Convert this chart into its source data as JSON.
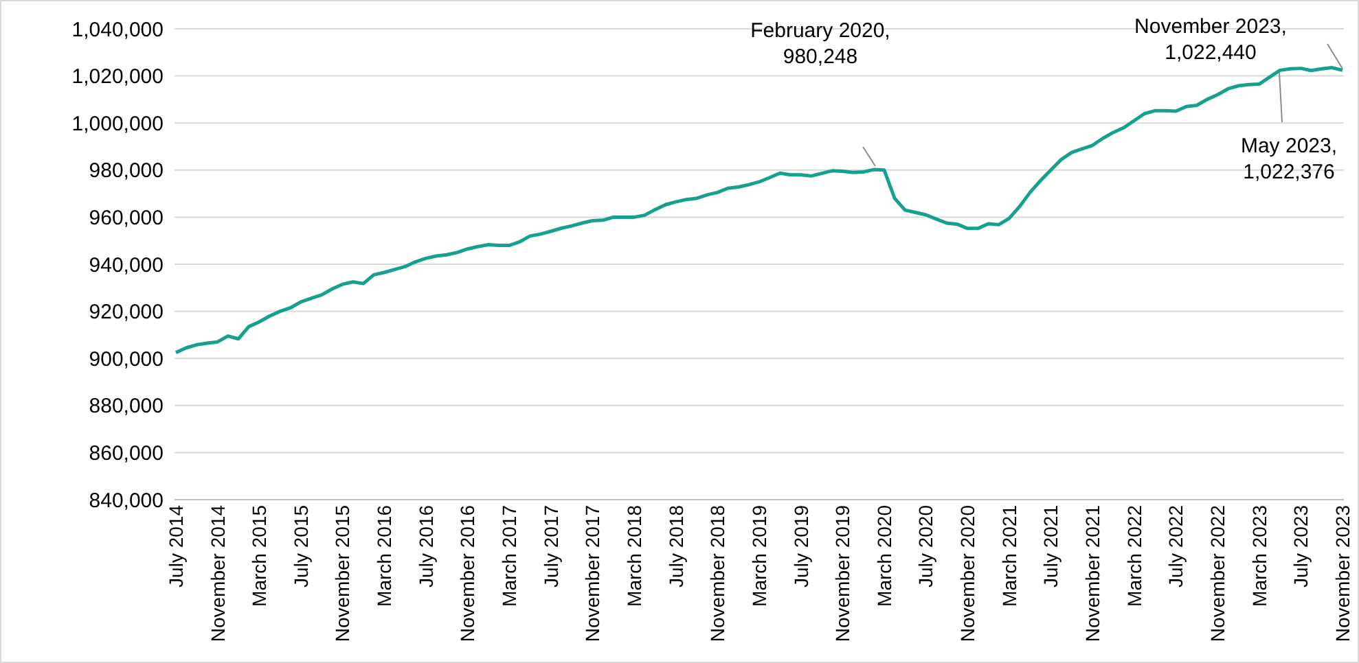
{
  "chart_data": {
    "type": "line",
    "categories": [
      "July 2014",
      null,
      null,
      null,
      "November 2014",
      null,
      null,
      null,
      "March 2015",
      null,
      null,
      null,
      "July 2015",
      null,
      null,
      null,
      "November 2015",
      null,
      null,
      null,
      "March 2016",
      null,
      null,
      null,
      "July 2016",
      null,
      null,
      null,
      "November 2016",
      null,
      null,
      null,
      "March 2017",
      null,
      null,
      null,
      "July 2017",
      null,
      null,
      null,
      "November 2017",
      null,
      null,
      null,
      "March 2018",
      null,
      null,
      null,
      "July 2018",
      null,
      null,
      null,
      "November 2018",
      null,
      null,
      null,
      "March 2019",
      null,
      null,
      null,
      "July 2019",
      null,
      null,
      null,
      "November 2019",
      null,
      null,
      null,
      "March 2020",
      null,
      null,
      null,
      "July 2020",
      null,
      null,
      null,
      "November 2020",
      null,
      null,
      null,
      "March 2021",
      null,
      null,
      null,
      "July 2021",
      null,
      null,
      null,
      "November 2021",
      null,
      null,
      null,
      "March 2022",
      null,
      null,
      null,
      "July 2022",
      null,
      null,
      null,
      "November 2022",
      null,
      null,
      null,
      "March 2023",
      null,
      null,
      null,
      "July 2023",
      null,
      null,
      null,
      "November 2023"
    ],
    "series": [
      {
        "color": "#16a08f",
        "values": [
          902500,
          904500,
          905800,
          906500,
          907000,
          909500,
          908300,
          913500,
          915500,
          918000,
          920000,
          921500,
          924000,
          925500,
          927000,
          929500,
          931500,
          932500,
          931800,
          935500,
          936500,
          937800,
          939000,
          941000,
          942500,
          943500,
          944000,
          945000,
          946500,
          947500,
          948300,
          948000,
          948000,
          949500,
          952000,
          952800,
          954000,
          955300,
          956300,
          957500,
          958500,
          958700,
          960000,
          960000,
          960000,
          960800,
          963200,
          965300,
          966500,
          967500,
          968000,
          969500,
          970500,
          972300,
          972800,
          973800,
          975000,
          976800,
          978700,
          978000,
          978000,
          977500,
          978600,
          979700,
          979500,
          979000,
          979200,
          980200,
          980000,
          968000,
          963000,
          962000,
          961000,
          959200,
          957500,
          957000,
          955200,
          955200,
          957200,
          956800,
          959500,
          964500,
          970500,
          975500,
          980000,
          984500,
          987500,
          989000,
          990500,
          993500,
          996000,
          998000,
          1001000,
          1004000,
          1005200,
          1005200,
          1005000,
          1007000,
          1007500,
          1010000,
          1012000,
          1014500,
          1015800,
          1016300,
          1016500,
          1019500,
          1022400,
          1023000,
          1023200,
          1022300,
          1023000,
          1023500,
          1022400
        ]
      }
    ],
    "ylim": [
      840000,
      1040000
    ],
    "yticks": [
      {
        "value": 840000,
        "label": "840,000"
      },
      {
        "value": 860000,
        "label": "860,000"
      },
      {
        "value": 880000,
        "label": "880,000"
      },
      {
        "value": 900000,
        "label": "900,000"
      },
      {
        "value": 920000,
        "label": "920,000"
      },
      {
        "value": 940000,
        "label": "940,000"
      },
      {
        "value": 960000,
        "label": "960,000"
      },
      {
        "value": 980000,
        "label": "980,000"
      },
      {
        "value": 1000000,
        "label": "1,000,000"
      },
      {
        "value": 1020000,
        "label": "1,020,000"
      },
      {
        "value": 1040000,
        "label": "1,040,000"
      }
    ],
    "grid": "y",
    "legend": false,
    "marker": "none",
    "line_style": "solid",
    "annotations": [
      "February 2020, 980,248",
      "May 2023, 1,022,376",
      "November 2023, 1,022,440"
    ]
  }
}
